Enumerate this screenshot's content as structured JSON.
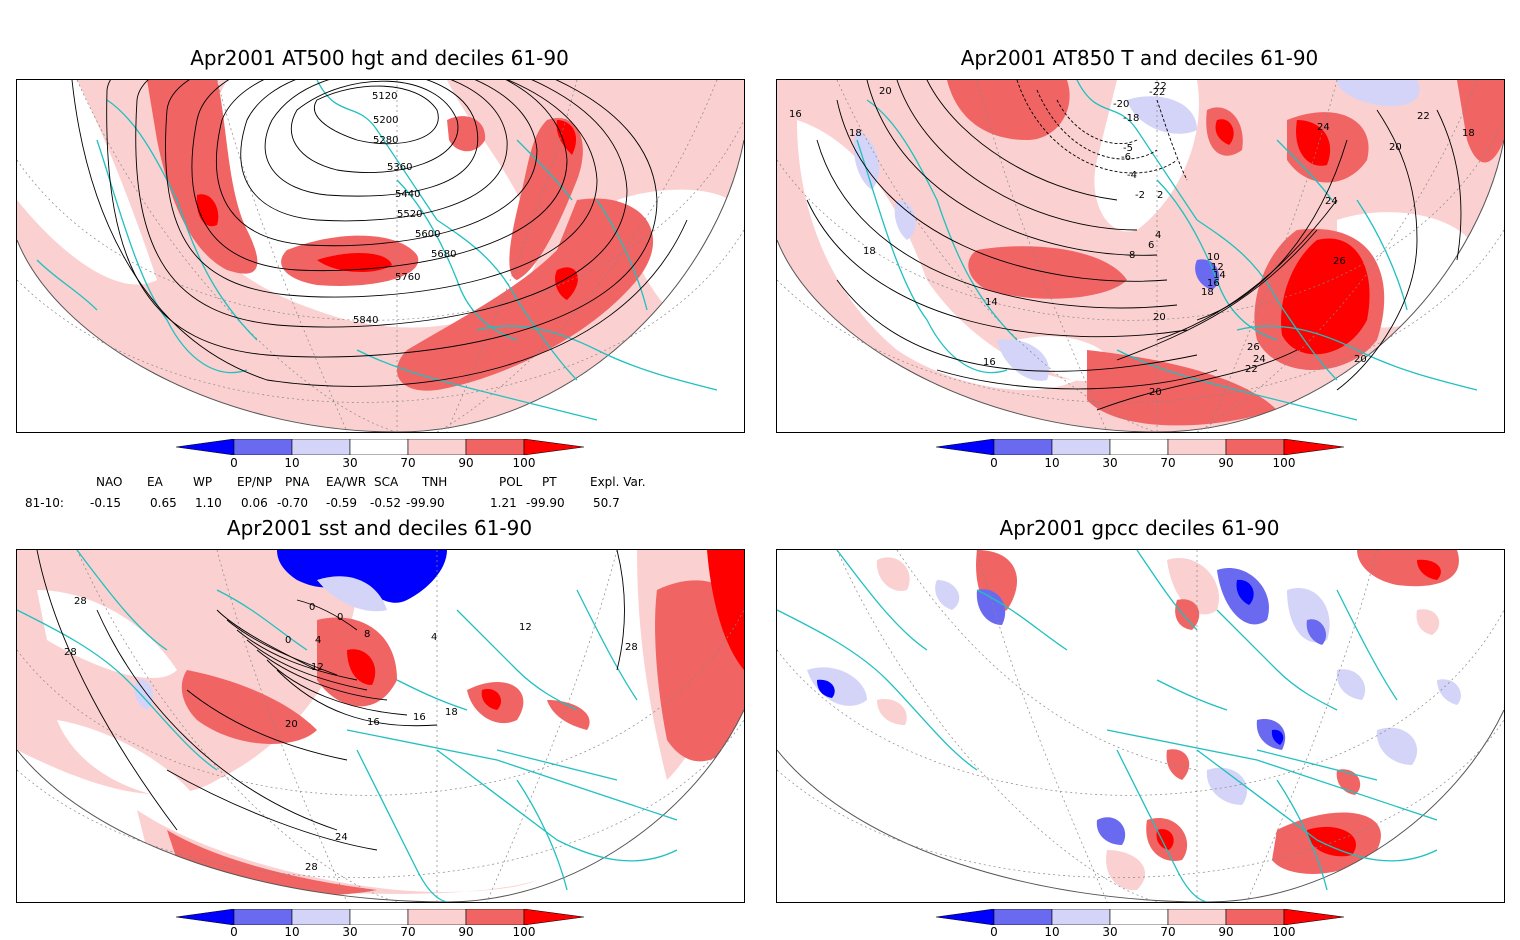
{
  "panels": [
    {
      "id": "p1",
      "title": "Apr2001 AT500 hgt and deciles 61-90",
      "contour_labels": [
        "5120",
        "5200",
        "5280",
        "5360",
        "5440",
        "5520",
        "5600",
        "5680",
        "5760",
        "5840"
      ]
    },
    {
      "id": "p2",
      "title": "Apr2001 AT850 T and deciles 61-90",
      "contour_labels": [
        "16",
        "20",
        "18",
        "22",
        "24",
        "22",
        "18",
        "20",
        "24",
        "26",
        "20",
        "18",
        "14",
        "8",
        "6",
        "4",
        "2",
        "10",
        "12",
        "14",
        "16",
        "18",
        "20",
        "26",
        "24",
        "22",
        "20",
        "16",
        "-22",
        "-20",
        "-18",
        "-6",
        "-4",
        "-2",
        "-5"
      ]
    },
    {
      "id": "p3",
      "title": "Apr2001 sst and deciles 61-90",
      "contour_labels": [
        "28",
        "28",
        "0",
        "0",
        "4",
        "8",
        "12",
        "16",
        "16",
        "18",
        "20",
        "24",
        "28",
        "12",
        "28",
        "4"
      ]
    },
    {
      "id": "p4",
      "title": "Apr2001 gpcc deciles 61-90",
      "contour_labels": []
    }
  ],
  "colorbar": {
    "ticks": [
      "0",
      "10",
      "30",
      "70",
      "90",
      "100"
    ],
    "colors": {
      "deep_blue": "#0000ff",
      "mid_blue": "#6a6af0",
      "light_blue": "#d4d4f8",
      "white": "#ffffff",
      "light_red": "#fbd0d0",
      "mid_red": "#f06464",
      "deep_red": "#ff0000"
    }
  },
  "indices": {
    "headers": [
      "NAO",
      "EA",
      "WP",
      "EP/NP",
      "PNA",
      "EA/WR",
      "SCA",
      "TNH",
      "POL",
      "PT",
      "Expl. Var."
    ],
    "row_label": "81-10:",
    "values": [
      "-0.15",
      "0.65",
      "1.10",
      "0.06",
      "-0.70",
      "-0.59",
      "-0.52",
      "-99.90",
      "1.21",
      "-99.90",
      "50.7"
    ]
  },
  "style": {
    "coast_color": "#20c0c0",
    "contour_color": "#000000"
  }
}
